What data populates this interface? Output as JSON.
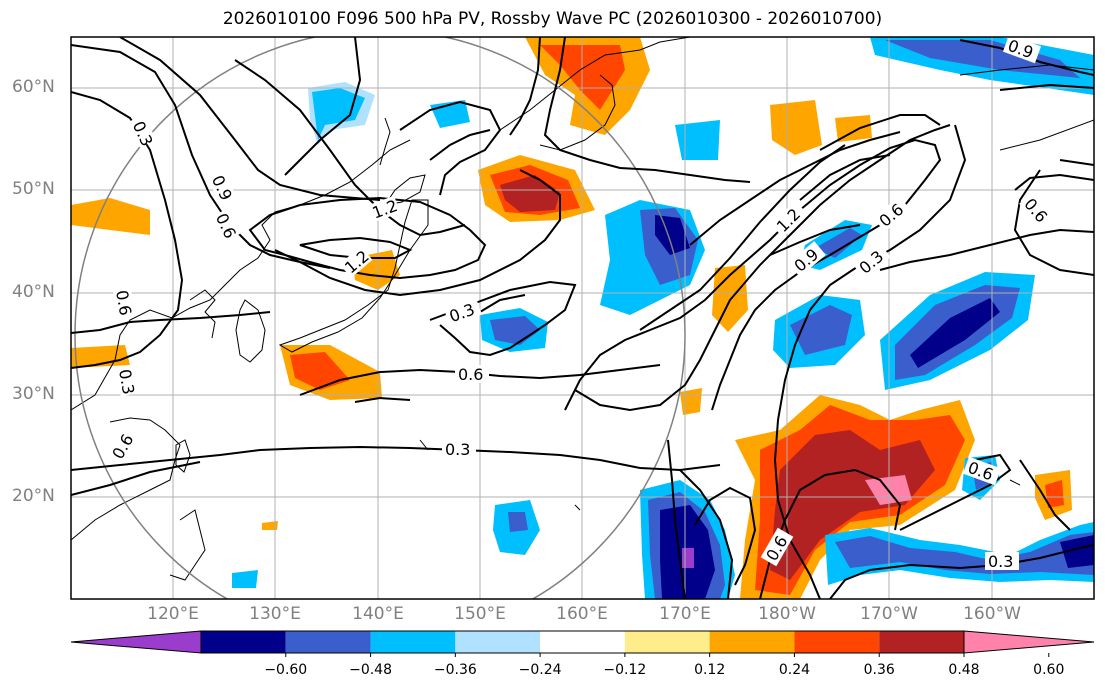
{
  "title": "2026010100 F096 500 hPa PV, Rossby Wave PC (2026010300 - 2026010700)",
  "lat_labels": [
    "60°N",
    "50°N",
    "40°N",
    "30°N",
    "20°N"
  ],
  "lon_labels": [
    "120°E",
    "130°E",
    "140°E",
    "150°E",
    "160°E",
    "170°E",
    "180°W",
    "170°W",
    "160°W"
  ],
  "contour_levels": [
    "0.3",
    "0.6",
    "0.9",
    "1.2"
  ],
  "colorbar": {
    "ticks": [
      "−0.60",
      "−0.48",
      "−0.36",
      "−0.24",
      "−0.12",
      "0.12",
      "0.24",
      "0.36",
      "0.48",
      "0.60"
    ],
    "colors": [
      "#9a3dcc",
      "#00008b",
      "#3a5fcd",
      "#00bfff",
      "#b0e2ff",
      "#ffffff",
      "#ffec8b",
      "#ffa500",
      "#ff4500",
      "#b22222",
      "#ff82ab"
    ]
  }
}
